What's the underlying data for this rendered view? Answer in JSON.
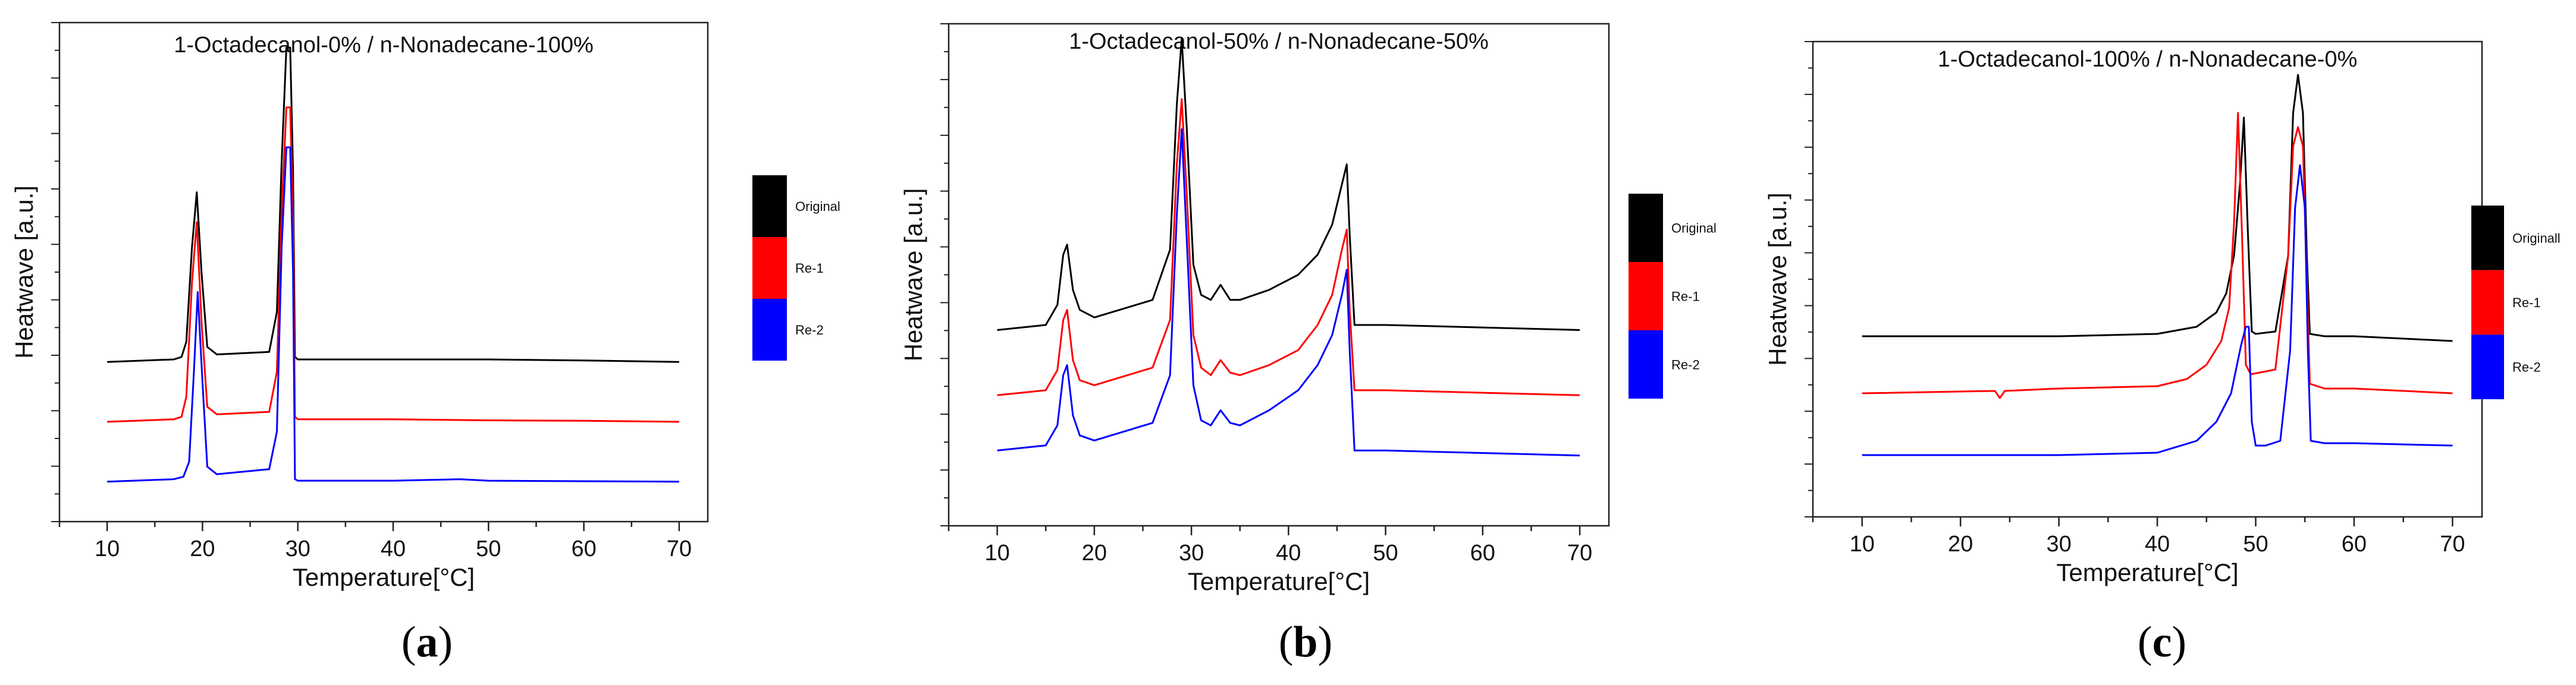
{
  "figure": {
    "panels": [
      {
        "label_open": "(",
        "label_letter": "a",
        "label_close": ")"
      },
      {
        "label_open": "(",
        "label_letter": "b",
        "label_close": ")"
      },
      {
        "label_open": "(",
        "label_letter": "c",
        "label_close": ")"
      }
    ]
  },
  "chart_data": [
    {
      "type": "line",
      "title": "1-Octadecanol-0% / n-Nonadecane-100%",
      "xlabel": "Temperature[°C]",
      "ylabel": "Heatwave [a.u.]",
      "xlim": [
        5,
        73
      ],
      "ylim": [
        0,
        100
      ],
      "xticks": [
        10,
        20,
        30,
        40,
        50,
        60,
        70
      ],
      "y_tick_labels_shown": false,
      "legend": {
        "position": "right",
        "entries": [
          "Original",
          "Re-1",
          "Re-2"
        ]
      },
      "series": [
        {
          "name": "Original",
          "color": "#000000",
          "x": [
            10,
            17,
            17.8,
            18.3,
            18.9,
            19.4,
            19.9,
            20.5,
            21.5,
            27,
            27.8,
            28.3,
            28.8,
            29.2,
            29.5,
            29.7,
            30,
            40,
            50,
            60,
            70
          ],
          "y": [
            32,
            32.5,
            33,
            36,
            55,
            66,
            50,
            35,
            33.5,
            34,
            42,
            72,
            95,
            95,
            70,
            33,
            32.5,
            32.5,
            32.5,
            32.3,
            32
          ]
        },
        {
          "name": "Re-1",
          "color": "#ff0000",
          "x": [
            10,
            17,
            17.8,
            18.3,
            18.9,
            19.4,
            19.9,
            20.5,
            21.5,
            27,
            27.8,
            28.3,
            28.8,
            29.2,
            29.5,
            29.7,
            30,
            40,
            50,
            60,
            70
          ],
          "y": [
            20,
            20.5,
            21,
            25,
            48,
            60,
            40,
            23,
            21.5,
            22,
            30,
            62,
            83,
            83,
            60,
            21,
            20.5,
            20.5,
            20.3,
            20.2,
            20
          ]
        },
        {
          "name": "Re-2",
          "color": "#0000ff",
          "x": [
            10,
            17,
            18,
            18.6,
            19.1,
            19.5,
            20,
            20.5,
            21.5,
            27,
            27.8,
            28.3,
            28.8,
            29.2,
            29.5,
            29.7,
            30,
            40,
            47,
            50,
            60,
            70
          ],
          "y": [
            8,
            8.5,
            9,
            12,
            30,
            46,
            28,
            11,
            9.5,
            10.5,
            18,
            55,
            75,
            75,
            50,
            8.5,
            8.2,
            8.2,
            8.5,
            8.2,
            8.1,
            8
          ]
        }
      ]
    },
    {
      "type": "line",
      "title": "1-Octadecanol-50% / n-Nonadecane-50%",
      "xlabel": "Temperature[°C]",
      "ylabel": "Heatwave [a.u.]",
      "xlim": [
        5,
        73
      ],
      "ylim": [
        0,
        100
      ],
      "xticks": [
        10,
        20,
        30,
        40,
        50,
        60,
        70
      ],
      "y_tick_labels_shown": false,
      "legend": {
        "position": "right",
        "entries": [
          "Original",
          "Re-1",
          "Re-2"
        ]
      },
      "series": [
        {
          "name": "Original",
          "color": "#000000",
          "x": [
            10,
            15,
            16.2,
            16.8,
            17.2,
            17.8,
            18.5,
            20,
            26,
            27.8,
            28.5,
            29,
            29.5,
            30.2,
            31,
            32,
            33,
            34,
            35,
            38,
            41,
            43,
            44.5,
            45.5,
            46,
            46.3,
            46.8,
            50,
            60,
            70
          ],
          "y": [
            39,
            40,
            44,
            54,
            56,
            47,
            43,
            41.5,
            45,
            55,
            84,
            97,
            80,
            52,
            46,
            45,
            48,
            45,
            45,
            47,
            50,
            54,
            60,
            68,
            72,
            58,
            40,
            40,
            39.5,
            39
          ]
        },
        {
          "name": "Re-1",
          "color": "#ff0000",
          "x": [
            10,
            15,
            16.2,
            16.8,
            17.2,
            17.8,
            18.5,
            20,
            26,
            27.8,
            28.5,
            29,
            29.5,
            30.2,
            31,
            32,
            33,
            34,
            35,
            38,
            41,
            43,
            44.5,
            45.5,
            46,
            46.3,
            46.8,
            50,
            60,
            70
          ],
          "y": [
            26,
            27,
            31,
            41,
            43,
            33,
            29,
            28,
            31.5,
            41,
            72,
            85,
            67,
            38,
            31.5,
            30,
            33,
            30.5,
            30,
            32,
            35,
            40,
            46,
            55,
            59,
            43,
            27,
            27,
            26.5,
            26
          ]
        },
        {
          "name": "Re-2",
          "color": "#0000ff",
          "x": [
            10,
            15,
            16.2,
            16.8,
            17.2,
            17.8,
            18.5,
            20,
            26,
            27.8,
            28.5,
            29,
            29.5,
            30.2,
            31,
            32,
            33,
            34,
            35,
            38,
            41,
            43,
            44.5,
            45.5,
            46,
            46.3,
            46.8,
            50,
            60,
            70
          ],
          "y": [
            15,
            16,
            20,
            30,
            32,
            22,
            18,
            17,
            20.5,
            30,
            62,
            79,
            58,
            28,
            21,
            20,
            23,
            20.5,
            20,
            23,
            27,
            32,
            38,
            46,
            51,
            35,
            15,
            15,
            14.5,
            14
          ]
        }
      ]
    },
    {
      "type": "line",
      "title": "1-Octadecanol-100% / n-Nonadecane-0%",
      "xlabel": "Temperature[°C]",
      "ylabel": "Heatwave [a.u.]",
      "xlim": [
        5,
        73
      ],
      "ylim": [
        0,
        100
      ],
      "xticks": [
        10,
        20,
        30,
        40,
        50,
        60,
        70
      ],
      "y_tick_labels_shown": false,
      "legend": {
        "position": "right",
        "entries": [
          "Originall",
          "Re-1",
          "Re-2"
        ]
      },
      "series": [
        {
          "name": "Originall",
          "color": "#000000",
          "x": [
            10,
            30,
            40,
            44,
            46,
            47,
            47.8,
            48.4,
            48.8,
            49.2,
            49.6,
            50,
            52,
            53.3,
            53.8,
            54.3,
            54.8,
            55.2,
            55.5,
            57,
            60,
            70
          ],
          "y": [
            38,
            38,
            38.5,
            40,
            43,
            47,
            55,
            70,
            84,
            60,
            39,
            38.5,
            39,
            55,
            85,
            93,
            85,
            55,
            38.5,
            38,
            38,
            37
          ]
        },
        {
          "name": "Re-1",
          "color": "#ff0000",
          "x": [
            10,
            23.5,
            24,
            24.5,
            30,
            40,
            43,
            45,
            46.5,
            47.3,
            47.8,
            48.2,
            48.6,
            49,
            49.5,
            52,
            53.3,
            53.8,
            54.3,
            54.8,
            55.2,
            55.5,
            57,
            60,
            70
          ],
          "y": [
            26,
            26.5,
            25,
            26.5,
            27,
            27.5,
            29,
            32,
            37,
            44,
            62,
            85,
            60,
            32,
            30,
            31,
            55,
            78,
            82,
            78,
            50,
            28,
            27,
            27,
            26
          ]
        },
        {
          "name": "Re-2",
          "color": "#0000ff",
          "x": [
            10,
            30,
            40,
            44,
            46,
            47.5,
            48.5,
            49,
            49.3,
            49.6,
            50,
            51,
            52.5,
            53.5,
            54,
            54.5,
            55,
            55.3,
            55.6,
            57,
            60,
            70
          ],
          "y": [
            13,
            13,
            13.5,
            16,
            20,
            26,
            36,
            40,
            40,
            20,
            15,
            15,
            16,
            35,
            65,
            74,
            65,
            35,
            16,
            15.5,
            15.5,
            15
          ]
        }
      ]
    }
  ]
}
